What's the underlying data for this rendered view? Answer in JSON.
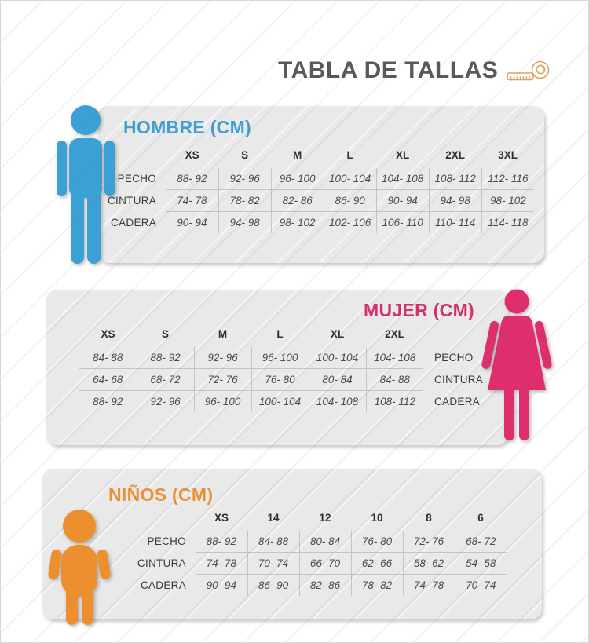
{
  "title": "TABLA DE TALLAS",
  "title_icon": "measuring-tape-icon",
  "colors": {
    "men_accent": "#3f9fd0",
    "women_accent": "#d4306e",
    "kids_accent": "#eb9037",
    "men_figure": "#3ba0d4",
    "women_figure": "#de2e6e",
    "kids_figure": "#ee8f2e",
    "panel_background": "#e9e9e9",
    "title_text": "#58595b",
    "value_text": "#4c4c4c",
    "grid_line": "#c4c4c4",
    "tape_icon": "#d9a366"
  },
  "sections": [
    {
      "id": "hombre",
      "heading": "HOMBRE (CM)",
      "figure": "man-icon",
      "labels_position": "left",
      "sizes": [
        "XS",
        "S",
        "M",
        "L",
        "XL",
        "2XL",
        "3XL"
      ],
      "rows": [
        {
          "label": "PECHO",
          "values": [
            "88- 92",
            "92- 96",
            "96- 100",
            "100- 104",
            "104- 108",
            "108- 112",
            "112- 116"
          ]
        },
        {
          "label": "CINTURA",
          "values": [
            "74- 78",
            "78- 82",
            "82- 86",
            "86- 90",
            "90- 94",
            "94- 98",
            "98- 102"
          ]
        },
        {
          "label": "CADERA",
          "values": [
            "90- 94",
            "94- 98",
            "98- 102",
            "102- 106",
            "106- 110",
            "110- 114",
            "114- 118"
          ]
        }
      ]
    },
    {
      "id": "mujer",
      "heading": "MUJER (CM)",
      "figure": "woman-icon",
      "labels_position": "right",
      "sizes": [
        "XS",
        "S",
        "M",
        "L",
        "XL",
        "2XL"
      ],
      "rows": [
        {
          "label": "PECHO",
          "values": [
            "84- 88",
            "88- 92",
            "92- 96",
            "96- 100",
            "100- 104",
            "104- 108"
          ]
        },
        {
          "label": "CINTURA",
          "values": [
            "64- 68",
            "68- 72",
            "72- 76",
            "76- 80",
            "80- 84",
            "84- 88"
          ]
        },
        {
          "label": "CADERA",
          "values": [
            "88- 92",
            "92- 96",
            "96- 100",
            "100- 104",
            "104- 108",
            "108- 112"
          ]
        }
      ]
    },
    {
      "id": "ninos",
      "heading": "NIÑOS (CM)",
      "figure": "child-icon",
      "labels_position": "left",
      "sizes": [
        "XS",
        "14",
        "12",
        "10",
        "8",
        "6"
      ],
      "rows": [
        {
          "label": "PECHO",
          "values": [
            "88- 92",
            "84- 88",
            "80- 84",
            "76- 80",
            "72- 76",
            "68- 72"
          ]
        },
        {
          "label": "CINTURA",
          "values": [
            "74- 78",
            "70- 74",
            "66- 70",
            "62- 66",
            "58- 62",
            "54- 58"
          ]
        },
        {
          "label": "CADERA",
          "values": [
            "90- 94",
            "86- 90",
            "82- 86",
            "78- 82",
            "74- 78",
            "70- 74"
          ]
        }
      ]
    }
  ]
}
